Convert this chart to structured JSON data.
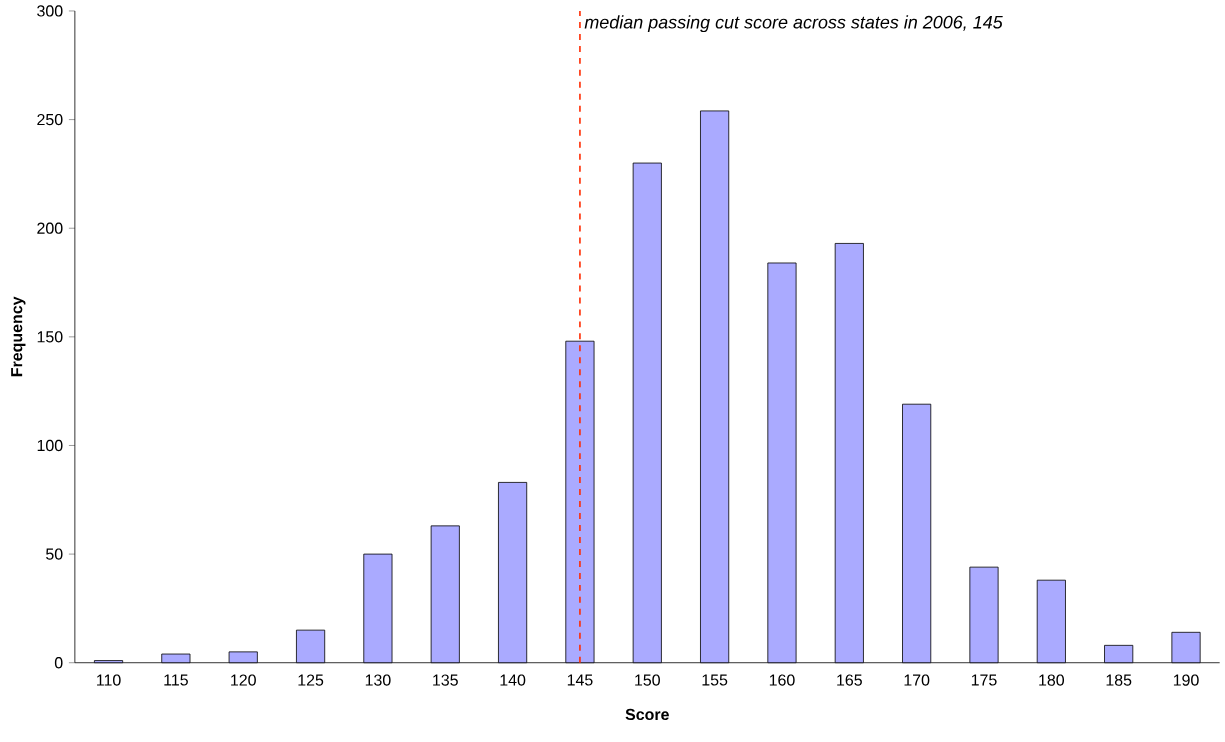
{
  "chart_data": {
    "type": "bar",
    "xlabel": "Score",
    "ylabel": "Frequency",
    "categories": [
      "110",
      "115",
      "120",
      "125",
      "130",
      "135",
      "140",
      "145",
      "150",
      "155",
      "160",
      "165",
      "170",
      "175",
      "180",
      "185",
      "190"
    ],
    "values": [
      1,
      4,
      5,
      15,
      50,
      63,
      83,
      148,
      230,
      254,
      184,
      193,
      119,
      44,
      38,
      8,
      14
    ],
    "color": "#aaaaff",
    "ylim": [
      0,
      300
    ],
    "yticks": [
      0,
      50,
      100,
      150,
      200,
      250,
      300
    ],
    "ref_lines": [
      {
        "axis": "x",
        "value": "145",
        "label": "median passing cut score across states in 2006, 145",
        "color": "#ff2a00",
        "line_style": "dashed"
      }
    ]
  }
}
